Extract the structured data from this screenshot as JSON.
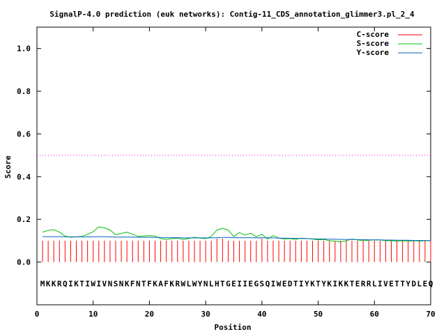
{
  "chart_data": {
    "type": "line",
    "title": "SignalP-4.0 prediction (euk networks): Contig-11_CDS_annotation_glimmer3.pl_2_4",
    "xlabel": "Position",
    "ylabel": "Score",
    "xlim": [
      0,
      70
    ],
    "ylim": [
      -0.2,
      1.1
    ],
    "x_ticks": [
      "0",
      "10",
      "20",
      "30",
      "40",
      "50",
      "60",
      "70"
    ],
    "y_ticks": [
      "0.0",
      "0.2",
      "0.4",
      "0.6",
      "0.8",
      "1.0"
    ],
    "x_tick_values": [
      0,
      10,
      20,
      30,
      40,
      50,
      60,
      70
    ],
    "y_tick_values": [
      0.0,
      0.2,
      0.4,
      0.6,
      0.8,
      1.0
    ],
    "grid": false,
    "legend_position": "top-right",
    "threshold": {
      "value": 0.5,
      "color": "#ff00ff",
      "style": "dotted"
    },
    "sequence": [
      "M",
      "K",
      "K",
      "R",
      "Q",
      "I",
      "K",
      "T",
      "I",
      "W",
      "I",
      "V",
      "N",
      "S",
      "N",
      "K",
      "F",
      "N",
      "T",
      "F",
      "K",
      "A",
      "F",
      "K",
      "R",
      "W",
      "L",
      "W",
      "Y",
      "N",
      "L",
      "H",
      "T",
      "G",
      "E",
      "I",
      "I",
      "E",
      "G",
      "S",
      "Q",
      "I",
      "W",
      "E",
      "D",
      "T",
      "I",
      "Y",
      "K",
      "T",
      "Y",
      "K",
      "I",
      "K",
      "K",
      "T",
      "E",
      "R",
      "R",
      "L",
      "I",
      "V",
      "E",
      "T",
      "T",
      "Y",
      "D",
      "L",
      "E",
      "Q"
    ],
    "series": [
      {
        "name": "C-score",
        "color": "#ff0000",
        "style": "impulses",
        "x": [
          1,
          2,
          3,
          4,
          5,
          6,
          7,
          8,
          9,
          10,
          11,
          12,
          13,
          14,
          15,
          16,
          17,
          18,
          19,
          20,
          21,
          22,
          23,
          24,
          25,
          26,
          27,
          28,
          29,
          30,
          31,
          32,
          33,
          34,
          35,
          36,
          37,
          38,
          39,
          40,
          41,
          42,
          43,
          44,
          45,
          46,
          47,
          48,
          49,
          50,
          51,
          52,
          53,
          54,
          55,
          56,
          57,
          58,
          59,
          60,
          61,
          62,
          63,
          64,
          65,
          66,
          67,
          68,
          69,
          70
        ],
        "y": [
          0.1,
          0.1,
          0.1,
          0.101,
          0.1,
          0.1,
          0.1,
          0.1,
          0.1,
          0.1,
          0.1,
          0.1,
          0.1,
          0.1,
          0.1,
          0.1,
          0.1,
          0.1,
          0.1,
          0.1,
          0.1,
          0.1,
          0.1,
          0.1,
          0.1,
          0.1,
          0.1,
          0.1,
          0.1,
          0.1,
          0.1,
          0.11,
          0.11,
          0.1,
          0.1,
          0.1,
          0.1,
          0.1,
          0.1,
          0.11,
          0.1,
          0.1,
          0.1,
          0.1,
          0.1,
          0.1,
          0.1,
          0.1,
          0.1,
          0.1,
          0.1,
          0.1,
          0.1,
          0.1,
          0.1,
          0.1,
          0.1,
          0.1,
          0.1,
          0.1,
          0.1,
          0.1,
          0.1,
          0.1,
          0.1,
          0.1,
          0.1,
          0.1,
          0.1,
          0.1
        ]
      },
      {
        "name": "S-score",
        "color": "#00c000",
        "style": "line",
        "x": [
          1,
          2,
          3,
          4,
          5,
          6,
          7,
          8,
          9,
          10,
          11,
          12,
          13,
          14,
          15,
          16,
          17,
          18,
          19,
          20,
          21,
          22,
          23,
          24,
          25,
          26,
          27,
          28,
          29,
          30,
          31,
          32,
          33,
          34,
          35,
          36,
          37,
          38,
          39,
          40,
          41,
          42,
          43,
          44,
          45,
          46,
          47,
          48,
          49,
          50,
          51,
          52,
          53,
          54,
          55,
          56,
          57,
          58,
          59,
          60,
          61,
          62,
          63,
          64,
          65,
          66,
          67,
          68,
          69,
          70
        ],
        "y": [
          0.14,
          0.148,
          0.152,
          0.14,
          0.122,
          0.116,
          0.118,
          0.12,
          0.13,
          0.142,
          0.165,
          0.16,
          0.15,
          0.128,
          0.134,
          0.14,
          0.13,
          0.12,
          0.122,
          0.124,
          0.122,
          0.11,
          0.106,
          0.11,
          0.112,
          0.106,
          0.11,
          0.116,
          0.112,
          0.11,
          0.12,
          0.15,
          0.158,
          0.15,
          0.12,
          0.138,
          0.126,
          0.135,
          0.118,
          0.13,
          0.108,
          0.124,
          0.112,
          0.108,
          0.11,
          0.106,
          0.112,
          0.11,
          0.108,
          0.104,
          0.106,
          0.1,
          0.098,
          0.094,
          0.1,
          0.108,
          0.104,
          0.1,
          0.102,
          0.104,
          0.104,
          0.1,
          0.1,
          0.098,
          0.1,
          0.098,
          0.1,
          0.098,
          0.1,
          0.1
        ]
      },
      {
        "name": "Y-score",
        "color": "#0060c0",
        "style": "line",
        "x": [
          1,
          2,
          3,
          4,
          5,
          6,
          7,
          8,
          9,
          10,
          11,
          12,
          13,
          14,
          15,
          16,
          17,
          18,
          19,
          20,
          21,
          22,
          23,
          24,
          25,
          26,
          27,
          28,
          29,
          30,
          31,
          32,
          33,
          34,
          35,
          36,
          37,
          38,
          39,
          40,
          41,
          42,
          43,
          44,
          45,
          46,
          47,
          48,
          49,
          50,
          51,
          52,
          53,
          54,
          55,
          56,
          57,
          58,
          59,
          60,
          61,
          62,
          63,
          64,
          65,
          66,
          67,
          68,
          69,
          70
        ],
        "y": [
          0.119,
          0.119,
          0.119,
          0.119,
          0.118,
          0.118,
          0.118,
          0.118,
          0.118,
          0.118,
          0.119,
          0.119,
          0.118,
          0.117,
          0.117,
          0.117,
          0.117,
          0.116,
          0.116,
          0.116,
          0.115,
          0.115,
          0.114,
          0.114,
          0.114,
          0.113,
          0.113,
          0.113,
          0.113,
          0.113,
          0.113,
          0.114,
          0.115,
          0.115,
          0.114,
          0.114,
          0.114,
          0.114,
          0.113,
          0.114,
          0.113,
          0.113,
          0.112,
          0.112,
          0.111,
          0.111,
          0.11,
          0.11,
          0.109,
          0.108,
          0.108,
          0.107,
          0.107,
          0.106,
          0.106,
          0.106,
          0.105,
          0.105,
          0.104,
          0.104,
          0.104,
          0.103,
          0.103,
          0.102,
          0.102,
          0.102,
          0.101,
          0.101,
          0.101,
          0.1
        ]
      }
    ]
  }
}
